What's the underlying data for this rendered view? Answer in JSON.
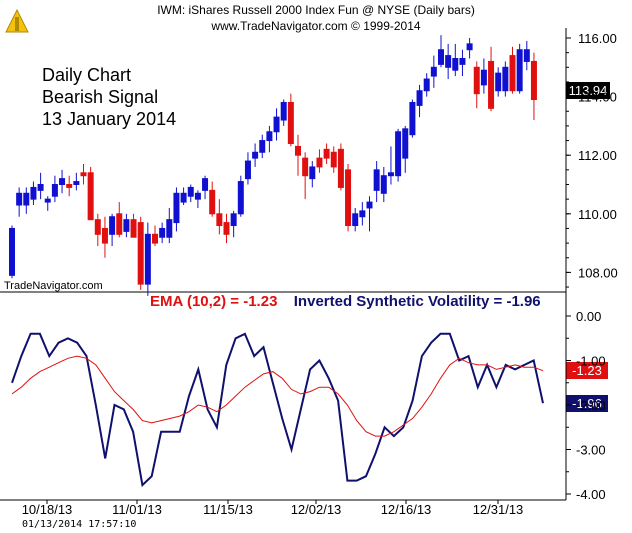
{
  "header": {
    "title": "IWM:  iShares Russell 2000 Index Fun @ NYSE  (Daily bars)",
    "subtitle": "www.TradeNavigator.com © 1999-2014"
  },
  "annotation": [
    "Daily Chart",
    "Bearish Signal",
    "13 January 2014"
  ],
  "watermark": "TradeNavigator.com",
  "timestamp": "01/13/2014  17:57:10",
  "last_price_label": "113.94",
  "indicator_legend": {
    "ema": "EMA (10,2) = -1.23",
    "isv": "Inverted Synthetic Volatility = -1.96"
  },
  "indicator_last": {
    "ema": "-1.23",
    "isv": "-1.96"
  },
  "colors": {
    "up": "#1010d0",
    "down": "#e01010",
    "isv": "#10106e",
    "ema": "#e01010",
    "last_price_bg": "#000000"
  },
  "chart_data": [
    {
      "type": "candlestick",
      "yticks": [
        "116.00",
        "114.00",
        "112.00",
        "110.00",
        "108.00"
      ],
      "ylim": [
        107.0,
        116.4
      ],
      "up_color": "blue",
      "down_color": "red",
      "last": 113.94,
      "candles": [
        {
          "o": 107.9,
          "h": 109.6,
          "l": 107.8,
          "c": 109.5
        },
        {
          "o": 110.3,
          "h": 110.9,
          "l": 109.9,
          "c": 110.7
        },
        {
          "o": 110.3,
          "h": 110.9,
          "l": 110.0,
          "c": 110.7
        },
        {
          "o": 110.5,
          "h": 111.1,
          "l": 110.3,
          "c": 110.9
        },
        {
          "o": 110.8,
          "h": 111.4,
          "l": 110.5,
          "c": 111.0
        },
        {
          "o": 110.4,
          "h": 110.6,
          "l": 110.1,
          "c": 110.5
        },
        {
          "o": 110.6,
          "h": 111.3,
          "l": 110.4,
          "c": 111.0
        },
        {
          "o": 111.0,
          "h": 111.5,
          "l": 110.7,
          "c": 111.2
        },
        {
          "o": 111.0,
          "h": 111.3,
          "l": 110.6,
          "c": 110.9
        },
        {
          "o": 111.0,
          "h": 111.4,
          "l": 110.8,
          "c": 111.1
        },
        {
          "o": 111.4,
          "h": 111.7,
          "l": 111.0,
          "c": 111.3
        },
        {
          "o": 111.4,
          "h": 111.6,
          "l": 109.8,
          "c": 109.8
        },
        {
          "o": 109.8,
          "h": 110.0,
          "l": 108.9,
          "c": 109.3
        },
        {
          "o": 109.5,
          "h": 109.9,
          "l": 108.5,
          "c": 109.0
        },
        {
          "o": 109.3,
          "h": 110.0,
          "l": 108.9,
          "c": 109.9
        },
        {
          "o": 110.0,
          "h": 110.4,
          "l": 109.2,
          "c": 109.3
        },
        {
          "o": 109.4,
          "h": 110.0,
          "l": 109.2,
          "c": 109.8
        },
        {
          "o": 109.8,
          "h": 110.0,
          "l": 109.2,
          "c": 109.2
        },
        {
          "o": 109.7,
          "h": 109.9,
          "l": 107.4,
          "c": 107.6
        },
        {
          "o": 107.6,
          "h": 109.7,
          "l": 107.2,
          "c": 109.3
        },
        {
          "o": 109.3,
          "h": 109.6,
          "l": 108.9,
          "c": 109.0
        },
        {
          "o": 109.2,
          "h": 109.7,
          "l": 109.0,
          "c": 109.5
        },
        {
          "o": 109.2,
          "h": 110.2,
          "l": 109.0,
          "c": 109.8
        },
        {
          "o": 109.7,
          "h": 110.9,
          "l": 109.4,
          "c": 110.7
        },
        {
          "o": 110.4,
          "h": 110.9,
          "l": 110.3,
          "c": 110.7
        },
        {
          "o": 110.6,
          "h": 111.0,
          "l": 110.4,
          "c": 110.9
        },
        {
          "o": 110.5,
          "h": 110.8,
          "l": 110.2,
          "c": 110.7
        },
        {
          "o": 110.8,
          "h": 111.3,
          "l": 110.5,
          "c": 111.2
        },
        {
          "o": 110.8,
          "h": 111.1,
          "l": 109.9,
          "c": 110.0
        },
        {
          "o": 110.0,
          "h": 110.5,
          "l": 109.3,
          "c": 109.6
        },
        {
          "o": 109.7,
          "h": 110.0,
          "l": 109.0,
          "c": 109.3
        },
        {
          "o": 109.6,
          "h": 110.1,
          "l": 109.2,
          "c": 110.0
        },
        {
          "o": 110.0,
          "h": 111.3,
          "l": 109.9,
          "c": 111.1
        },
        {
          "o": 111.2,
          "h": 112.1,
          "l": 111.0,
          "c": 111.8
        },
        {
          "o": 111.9,
          "h": 112.4,
          "l": 111.6,
          "c": 112.1
        },
        {
          "o": 112.1,
          "h": 112.7,
          "l": 111.9,
          "c": 112.5
        },
        {
          "o": 112.5,
          "h": 113.0,
          "l": 112.1,
          "c": 112.8
        },
        {
          "o": 112.8,
          "h": 113.6,
          "l": 112.5,
          "c": 113.3
        },
        {
          "o": 113.2,
          "h": 113.9,
          "l": 113.0,
          "c": 113.8
        },
        {
          "o": 113.8,
          "h": 114.1,
          "l": 112.3,
          "c": 112.4
        },
        {
          "o": 112.3,
          "h": 112.7,
          "l": 111.3,
          "c": 112.0
        },
        {
          "o": 111.9,
          "h": 112.1,
          "l": 110.5,
          "c": 111.3
        },
        {
          "o": 111.2,
          "h": 111.8,
          "l": 110.9,
          "c": 111.6
        },
        {
          "o": 111.9,
          "h": 112.2,
          "l": 111.4,
          "c": 111.6
        },
        {
          "o": 112.2,
          "h": 112.4,
          "l": 111.7,
          "c": 111.9
        },
        {
          "o": 112.1,
          "h": 112.3,
          "l": 111.4,
          "c": 111.6
        },
        {
          "o": 112.2,
          "h": 112.4,
          "l": 110.8,
          "c": 110.9
        },
        {
          "o": 111.5,
          "h": 111.7,
          "l": 109.4,
          "c": 109.6
        },
        {
          "o": 109.6,
          "h": 110.2,
          "l": 109.4,
          "c": 110.0
        },
        {
          "o": 109.9,
          "h": 110.4,
          "l": 109.6,
          "c": 110.1
        },
        {
          "o": 110.2,
          "h": 110.6,
          "l": 109.4,
          "c": 110.4
        },
        {
          "o": 110.8,
          "h": 111.8,
          "l": 110.4,
          "c": 111.5
        },
        {
          "o": 110.7,
          "h": 111.6,
          "l": 110.4,
          "c": 111.3
        },
        {
          "o": 111.3,
          "h": 112.3,
          "l": 111.0,
          "c": 111.4
        },
        {
          "o": 111.3,
          "h": 112.9,
          "l": 111.1,
          "c": 112.8
        },
        {
          "o": 111.9,
          "h": 113.0,
          "l": 111.4,
          "c": 112.9
        },
        {
          "o": 112.7,
          "h": 113.9,
          "l": 112.6,
          "c": 113.8
        },
        {
          "o": 113.7,
          "h": 114.4,
          "l": 113.3,
          "c": 114.2
        },
        {
          "o": 114.2,
          "h": 114.8,
          "l": 114.0,
          "c": 114.6
        },
        {
          "o": 114.7,
          "h": 115.4,
          "l": 114.3,
          "c": 115.0
        },
        {
          "o": 115.1,
          "h": 116.1,
          "l": 115.0,
          "c": 115.6
        },
        {
          "o": 115.0,
          "h": 115.8,
          "l": 114.6,
          "c": 115.4
        },
        {
          "o": 114.9,
          "h": 115.8,
          "l": 114.7,
          "c": 115.3
        },
        {
          "o": 115.1,
          "h": 115.6,
          "l": 114.7,
          "c": 115.3
        },
        {
          "o": 115.6,
          "h": 116.0,
          "l": 115.3,
          "c": 115.8
        },
        {
          "o": 115.0,
          "h": 115.2,
          "l": 113.6,
          "c": 114.1
        },
        {
          "o": 114.4,
          "h": 115.3,
          "l": 114.1,
          "c": 114.9
        },
        {
          "o": 115.2,
          "h": 115.7,
          "l": 113.5,
          "c": 113.6
        },
        {
          "o": 114.2,
          "h": 115.0,
          "l": 114.0,
          "c": 114.8
        },
        {
          "o": 114.2,
          "h": 115.2,
          "l": 114.0,
          "c": 115.0
        },
        {
          "o": 115.4,
          "h": 115.7,
          "l": 114.1,
          "c": 114.2
        },
        {
          "o": 114.2,
          "h": 115.8,
          "l": 114.1,
          "c": 115.6
        },
        {
          "o": 115.2,
          "h": 115.9,
          "l": 114.9,
          "c": 115.6
        },
        {
          "o": 115.2,
          "h": 115.5,
          "l": 113.2,
          "c": 113.9
        }
      ]
    },
    {
      "type": "line",
      "yticks": [
        "0.00",
        "-1.00",
        "-2.00",
        "-3.00",
        "-4.00"
      ],
      "ylim": [
        -4.0,
        0.0
      ],
      "series": [
        {
          "name": "Inverted Synthetic Volatility",
          "values": [
            -1.5,
            -0.9,
            -0.4,
            -0.4,
            -0.9,
            -0.6,
            -0.5,
            -0.6,
            -0.9,
            -2.0,
            -3.2,
            -2.0,
            -2.1,
            -2.6,
            -3.8,
            -3.6,
            -2.6,
            -2.6,
            -2.6,
            -1.8,
            -1.2,
            -2.1,
            -2.5,
            -1.1,
            -0.5,
            -0.4,
            -0.9,
            -0.7,
            -1.5,
            -2.3,
            -3.0,
            -2.1,
            -1.2,
            -1.0,
            -1.4,
            -1.9,
            -3.7,
            -3.7,
            -3.6,
            -3.1,
            -2.5,
            -2.7,
            -2.5,
            -1.9,
            -0.9,
            -0.6,
            -0.4,
            -0.4,
            -1.0,
            -0.9,
            -1.6,
            -1.1,
            -1.6,
            -1.1,
            -1.2,
            -1.1,
            -1.0,
            -1.96
          ]
        },
        {
          "name": "EMA (10,2)",
          "values": [
            -1.75,
            -1.6,
            -1.4,
            -1.25,
            -1.15,
            -1.05,
            -0.95,
            -0.9,
            -0.95,
            -1.1,
            -1.4,
            -1.7,
            -1.9,
            -2.1,
            -2.35,
            -2.4,
            -2.35,
            -2.3,
            -2.25,
            -2.15,
            -2.0,
            -2.05,
            -2.15,
            -2.0,
            -1.8,
            -1.6,
            -1.45,
            -1.3,
            -1.25,
            -1.4,
            -1.65,
            -1.75,
            -1.7,
            -1.6,
            -1.6,
            -1.75,
            -2.0,
            -2.35,
            -2.6,
            -2.7,
            -2.7,
            -2.6,
            -2.45,
            -2.3,
            -2.05,
            -1.75,
            -1.4,
            -1.1,
            -0.95,
            -1.05,
            -1.1,
            -1.1,
            -1.2,
            -1.15,
            -1.1,
            -1.15,
            -1.15,
            -1.23
          ]
        }
      ]
    }
  ],
  "xaxis": {
    "labels": [
      "10/18/13",
      "11/01/13",
      "11/15/13",
      "12/02/13",
      "12/16/13",
      "12/31/13"
    ]
  }
}
